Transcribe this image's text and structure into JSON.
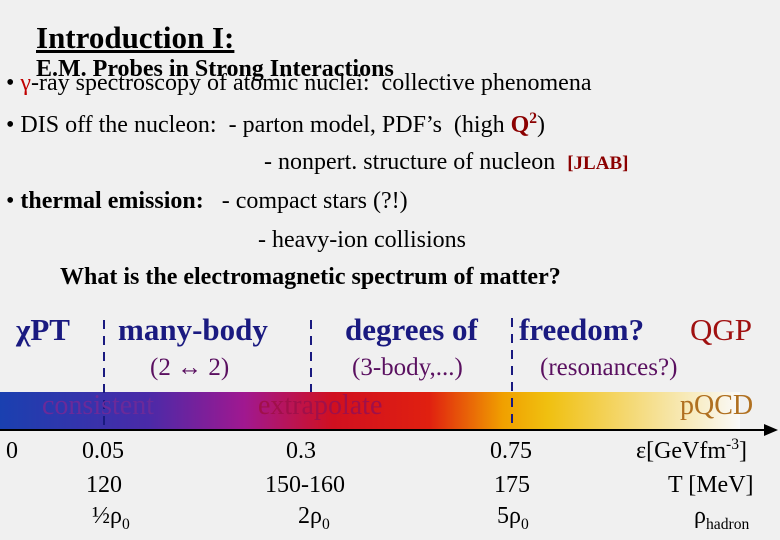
{
  "title": {
    "main": "Introduction I:",
    "sub": "E.M. Probes in Strong Interactions"
  },
  "lines": [
    [
      "•",
      "γ",
      "-ray spectroscopy of atomic nuclei:  collective phenomena"
    ],
    [
      "•",
      "DIS off the nucleon:  - parton model, PDF’s  (high ",
      "Q",
      "2",
      ")"
    ],
    [
      "- nonpert. structure of nucleon",
      "[JLAB]"
    ],
    [
      "•",
      "thermal emission:",
      "- compact stars (?!)"
    ],
    [
      "- heavy-ion collisions"
    ],
    [
      "What is the electromagnetic spectrum of matter?"
    ]
  ],
  "diagram": {
    "headings": [
      "χPT",
      "many-body",
      "degrees of",
      "freedom?",
      "QGP"
    ],
    "subheadings": [
      "(2 ↔ 2)",
      "(3-body,...)",
      "(resonances?)"
    ],
    "bar_labels": [
      "consistent",
      "extrapolate",
      "pQCD"
    ],
    "energy": [
      "0",
      "0.05",
      "0.3",
      "0.75",
      {
        "main": "ε[GeVfm",
        "sup": "-3",
        "end": "]"
      }
    ],
    "temperature": [
      "120",
      "150-160",
      "175",
      "T [MeV]"
    ],
    "density": [
      {
        "main": "½ρ",
        "sub": "0"
      },
      {
        "main": "2ρ",
        "sub": "0"
      },
      {
        "main": "5ρ",
        "sub": "0"
      },
      {
        "main": "ρ",
        "sub": "hadron"
      }
    ]
  }
}
